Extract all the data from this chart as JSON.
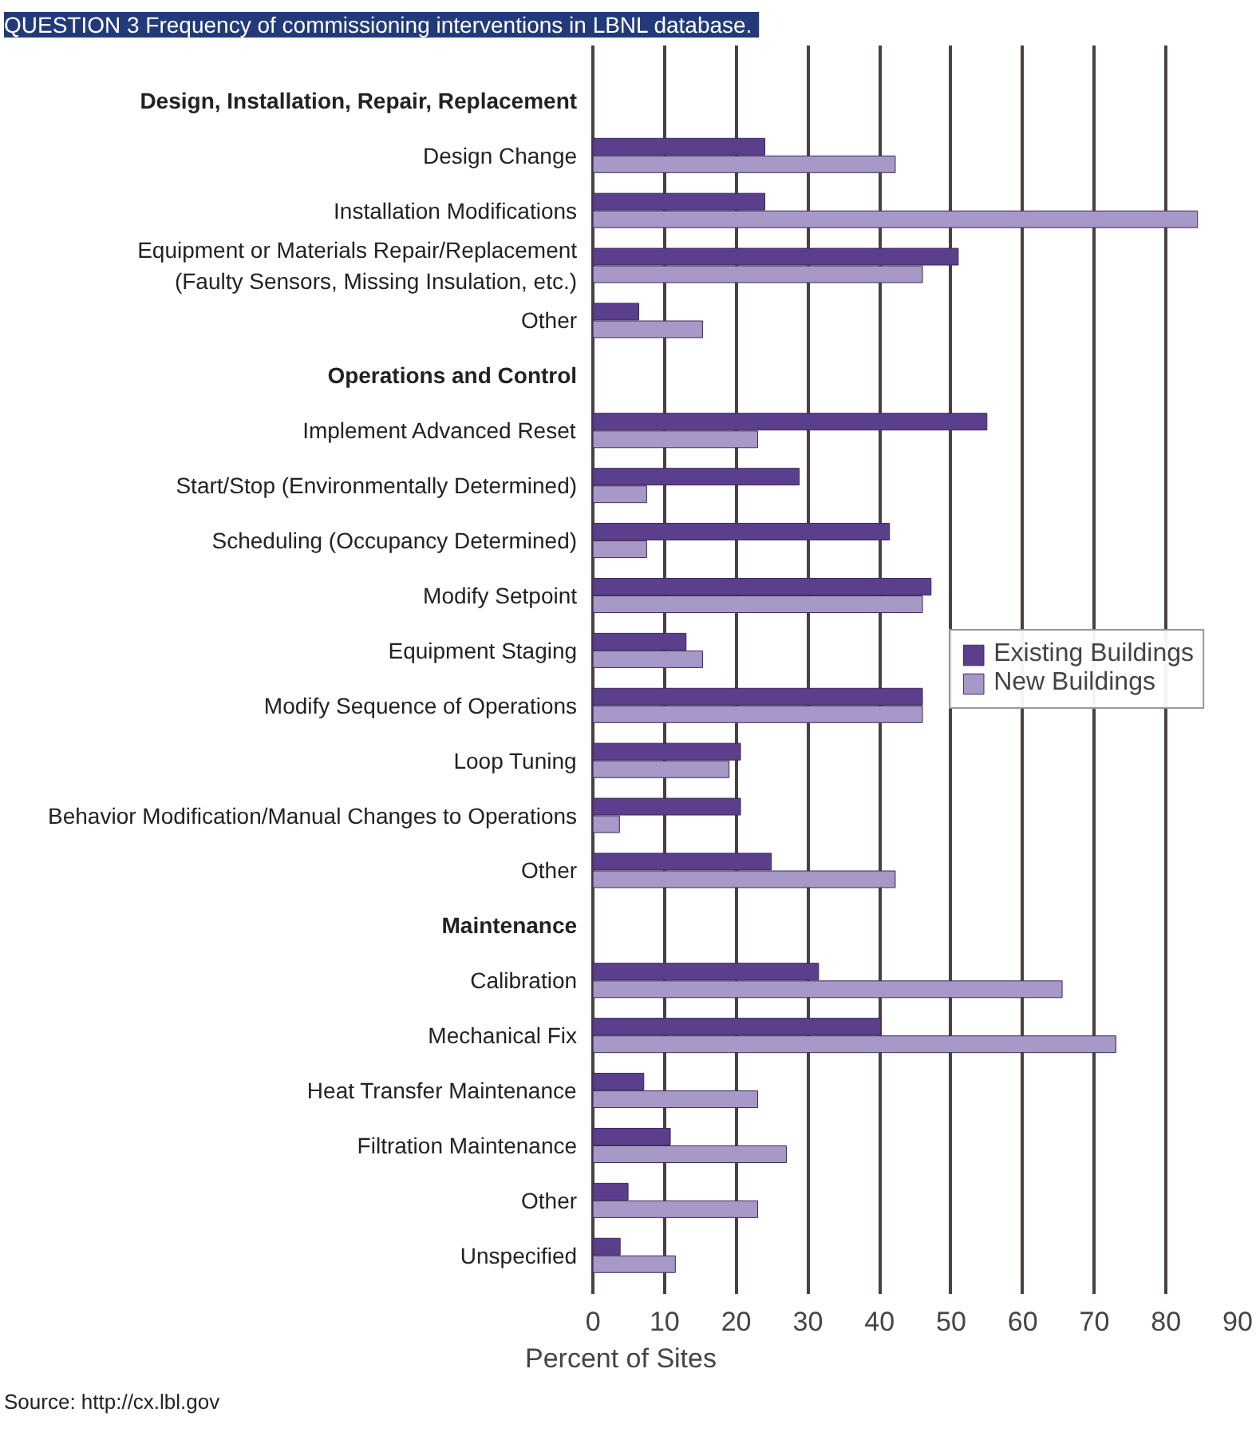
{
  "chart_data": {
    "type": "bar",
    "orientation": "horizontal",
    "title": "QUESTION 3  Frequency of commissioning interventions in LBNL database.",
    "xlabel": "Percent of Sites",
    "categories": [
      "Design, Installation, Repair, Replacement",
      "Design Change",
      "Installation Modifications",
      "Equipment or Materials Repair/Replacement\n(Faulty Sensors, Missing Insulation, etc.)",
      "Other",
      "Operations and Control",
      "Implement Advanced Reset",
      "Start/Stop (Environmentally Determined)",
      "Scheduling (Occupancy Determined)",
      "Modify Setpoint",
      "Equipment Staging",
      "Modify Sequence of Operations",
      "Loop Tuning",
      "Behavior Modification/Manual Changes to Operations",
      "Other",
      "Maintenance",
      "Calibration",
      "Mechanical Fix",
      "Heat Transfer Maintenance",
      "Filtration Maintenance",
      "Other",
      "Unspecified"
    ],
    "series": [
      {
        "name": "Existing Buildings",
        "color": "#5b3f8c",
        "values": [
          null,
          24,
          24,
          51,
          6.4,
          null,
          55,
          28.8,
          41.4,
          47.2,
          13,
          46,
          20.6,
          20.6,
          24.9,
          null,
          31.5,
          40.2,
          7.1,
          10.8,
          4.9,
          3.8
        ]
      },
      {
        "name": "New Buildings",
        "color": "#a898c8",
        "values": [
          null,
          42.2,
          84.4,
          46,
          15.3,
          null,
          23,
          7.5,
          7.5,
          46,
          15.3,
          46,
          19,
          3.7,
          42.2,
          null,
          65.5,
          73,
          23,
          27,
          23,
          11.5
        ]
      }
    ],
    "xlim": [
      0,
      90
    ],
    "xticks": [
      0,
      10,
      20,
      30,
      40,
      50,
      60,
      70,
      80,
      90
    ],
    "grid": "x",
    "legend": "right",
    "annotations": [
      "Source: http://cx.lbl.gov"
    ]
  }
}
